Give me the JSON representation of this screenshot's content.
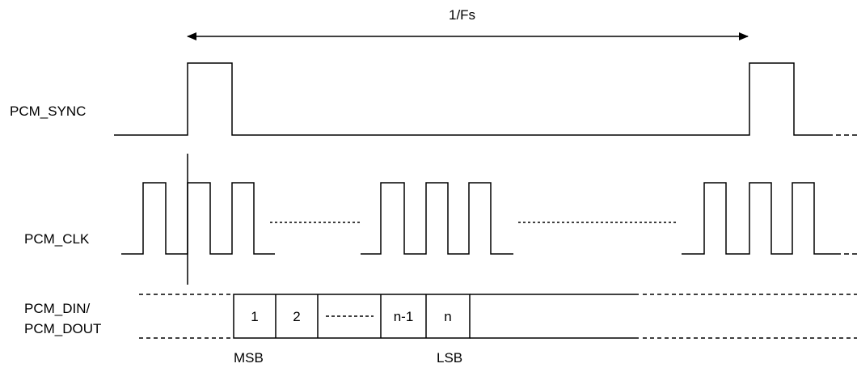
{
  "period_label": "1/Fs",
  "signals": {
    "sync": "PCM_SYNC",
    "clk": "PCM_CLK",
    "din": "PCM_DIN/",
    "dout": "PCM_DOUT"
  },
  "data_bits": [
    "1",
    "2",
    "n-1",
    "n"
  ],
  "bit_markers": {
    "msb": "MSB",
    "lsb": "LSB"
  }
}
